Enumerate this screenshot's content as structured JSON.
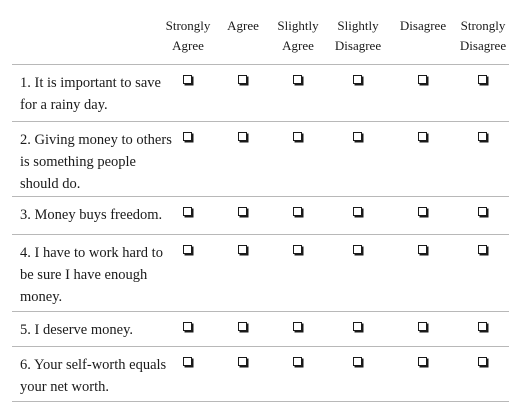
{
  "columns": [
    {
      "label": "Strongly\nAgree"
    },
    {
      "label": "Agree"
    },
    {
      "label": "Slightly\nAgree"
    },
    {
      "label": "Slightly\nDisagree"
    },
    {
      "label": "Disagree"
    },
    {
      "label": "Strongly\nDisagree"
    }
  ],
  "questions": [
    {
      "number": "1.",
      "text": "It is important to save for a rainy day."
    },
    {
      "number": "2.",
      "text": "Giving money to others is something people should do."
    },
    {
      "number": "3.",
      "text": "Money buys freedom."
    },
    {
      "number": "4.",
      "text": "I have to work hard to be sure I have enough money."
    },
    {
      "number": "5.",
      "text": "I deserve money."
    },
    {
      "number": "6.",
      "text": "Your self-worth equals your net worth."
    }
  ]
}
